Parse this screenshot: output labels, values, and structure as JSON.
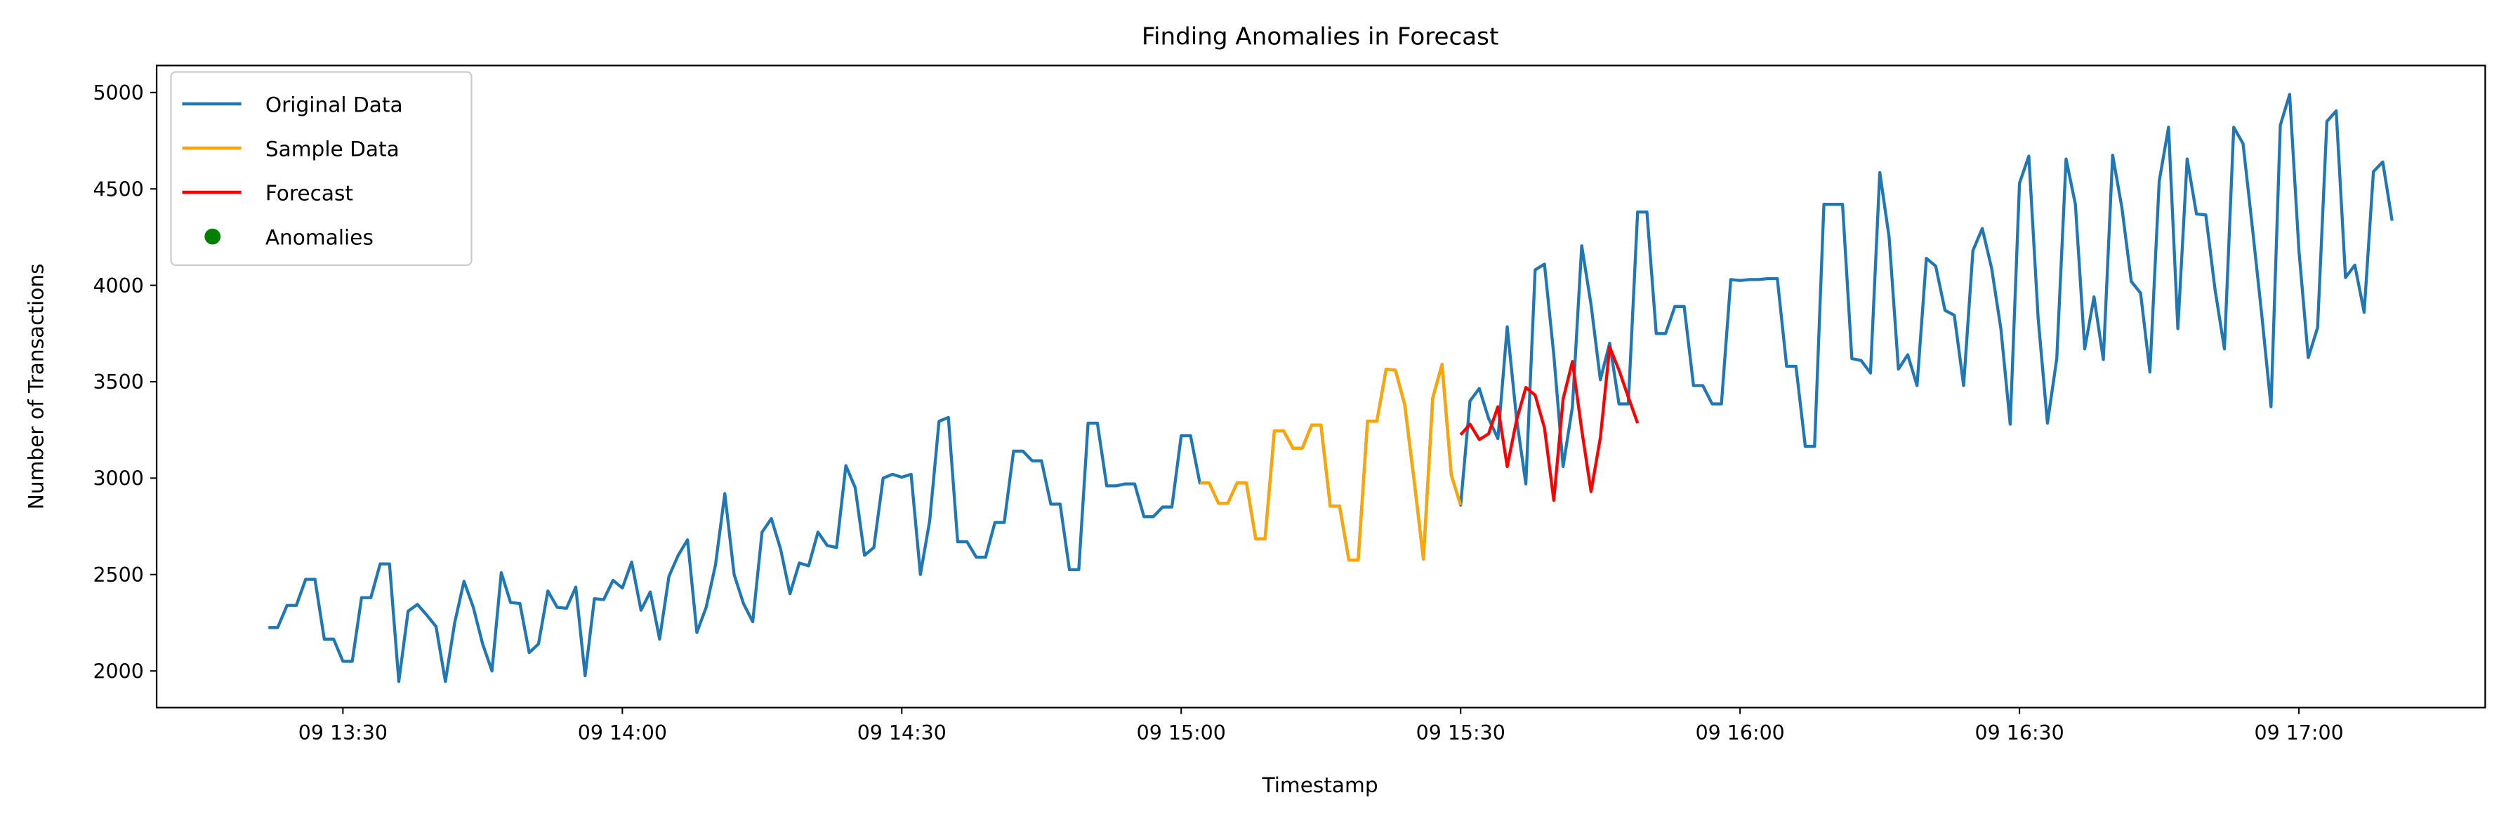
{
  "chart_data": {
    "type": "line",
    "title": "Finding Anomalies in Forecast",
    "x_label": "Timestamp",
    "y_label": "Number of Transactions",
    "xlim": [
      "09 13:10",
      "09 17:20"
    ],
    "xticks": [
      "09 13:30",
      "09 14:00",
      "09 14:30",
      "09 15:00",
      "09 15:30",
      "09 16:00",
      "09 16:30",
      "09 17:00"
    ],
    "ylim": [
      1810,
      5140
    ],
    "yticks": [
      2000,
      2500,
      3000,
      3500,
      4000,
      4500,
      5000
    ],
    "grid": false,
    "legend": "upper left",
    "series": [
      {
        "name": "Original Data",
        "color": "#1f77b4",
        "kind": "line",
        "x": [
          "09 13:22",
          "09 13:23",
          "09 13:24",
          "09 13:25",
          "09 13:26",
          "09 13:27",
          "09 13:28",
          "09 13:29",
          "09 13:30",
          "09 13:31",
          "09 13:32",
          "09 13:33",
          "09 13:34",
          "09 13:35",
          "09 13:36",
          "09 13:37",
          "09 13:38",
          "09 13:39",
          "09 13:40",
          "09 13:41",
          "09 13:42",
          "09 13:43",
          "09 13:44",
          "09 13:45",
          "09 13:46",
          "09 13:47",
          "09 13:48",
          "09 13:49",
          "09 13:50",
          "09 13:51",
          "09 13:52",
          "09 13:53",
          "09 13:54",
          "09 13:55",
          "09 13:56",
          "09 13:57",
          "09 13:58",
          "09 13:59",
          "09 14:00",
          "09 14:01",
          "09 14:02",
          "09 14:03",
          "09 14:04",
          "09 14:05",
          "09 14:06",
          "09 14:07",
          "09 14:08",
          "09 14:09",
          "09 14:10",
          "09 14:11",
          "09 14:12",
          "09 14:13",
          "09 14:14",
          "09 14:15",
          "09 14:16",
          "09 14:17",
          "09 14:18",
          "09 14:19",
          "09 14:20",
          "09 14:21",
          "09 14:22",
          "09 14:23",
          "09 14:24",
          "09 14:25",
          "09 14:26",
          "09 14:27",
          "09 14:28",
          "09 14:29",
          "09 14:30",
          "09 14:31",
          "09 14:32",
          "09 14:33",
          "09 14:34",
          "09 14:35",
          "09 14:36",
          "09 14:37",
          "09 14:38",
          "09 14:39",
          "09 14:40",
          "09 14:41",
          "09 14:42",
          "09 14:43",
          "09 14:44",
          "09 14:45",
          "09 14:46",
          "09 14:47",
          "09 14:48",
          "09 14:49",
          "09 14:50",
          "09 14:51",
          "09 14:52",
          "09 14:53",
          "09 14:54",
          "09 14:55",
          "09 14:56",
          "09 14:57",
          "09 14:58",
          "09 14:59",
          "09 15:00",
          "09 15:01",
          "09 15:02",
          "09 15:03",
          "09 15:04",
          "09 15:05",
          "09 15:06",
          "09 15:07",
          "09 15:08",
          "09 15:09",
          "09 15:10",
          "09 15:11",
          "09 15:12",
          "09 15:13",
          "09 15:14",
          "09 15:15",
          "09 15:16",
          "09 15:17",
          "09 15:18",
          "09 15:19",
          "09 15:20",
          "09 15:21",
          "09 15:22",
          "09 15:23",
          "09 15:24",
          "09 15:25",
          "09 15:26",
          "09 15:27",
          "09 15:28",
          "09 15:29",
          "09 15:30",
          "09 15:31",
          "09 15:32",
          "09 15:33",
          "09 15:34",
          "09 15:35",
          "09 15:36",
          "09 15:37",
          "09 15:38",
          "09 15:39",
          "09 15:40",
          "09 15:41",
          "09 15:42",
          "09 15:43",
          "09 15:44",
          "09 15:45",
          "09 15:46",
          "09 15:47",
          "09 15:48",
          "09 15:49",
          "09 15:50",
          "09 15:51",
          "09 15:52",
          "09 15:53",
          "09 15:54",
          "09 15:55",
          "09 15:56",
          "09 15:57",
          "09 15:58",
          "09 15:59",
          "09 16:00",
          "09 16:01",
          "09 16:02",
          "09 16:03",
          "09 16:04",
          "09 16:05",
          "09 16:06",
          "09 16:07",
          "09 16:08",
          "09 16:09",
          "09 16:10",
          "09 16:11",
          "09 16:12",
          "09 16:13",
          "09 16:14",
          "09 16:15",
          "09 16:16",
          "09 16:17",
          "09 16:18",
          "09 16:19",
          "09 16:20",
          "09 16:21",
          "09 16:22",
          "09 16:23",
          "09 16:24",
          "09 16:25",
          "09 16:26",
          "09 16:27",
          "09 16:28",
          "09 16:29",
          "09 16:30",
          "09 16:31",
          "09 16:32",
          "09 16:33",
          "09 16:34",
          "09 16:35",
          "09 16:36",
          "09 16:37",
          "09 16:38",
          "09 16:39",
          "09 16:40",
          "09 16:41",
          "09 16:42",
          "09 16:43",
          "09 16:44",
          "09 16:45",
          "09 16:46",
          "09 16:47",
          "09 16:48",
          "09 16:49",
          "09 16:50",
          "09 16:51",
          "09 16:52",
          "09 16:53",
          "09 16:54",
          "09 16:55",
          "09 16:56",
          "09 16:57",
          "09 16:58",
          "09 16:59",
          "09 17:00",
          "09 17:01",
          "09 17:02",
          "09 17:03",
          "09 17:04",
          "09 17:05",
          "09 17:06",
          "09 17:07",
          "09 17:08",
          "09 17:09",
          "09 17:10"
        ],
        "values": [
          2225,
          2225,
          2340,
          2340,
          2475,
          2475,
          2165,
          2165,
          2050,
          2050,
          2380,
          2380,
          2555,
          2555,
          1945,
          2310,
          2345,
          2290,
          2230,
          1945,
          2250,
          2465,
          2330,
          2140,
          2000,
          2510,
          2355,
          2350,
          2095,
          2140,
          2415,
          2330,
          2325,
          2435,
          1975,
          2375,
          2370,
          2470,
          2430,
          2565,
          2315,
          2410,
          2165,
          2490,
          2600,
          2680,
          2200,
          2330,
          2550,
          2920,
          2500,
          2350,
          2255,
          2720,
          2790,
          2630,
          2400,
          2560,
          2545,
          2720,
          2650,
          2640,
          3065,
          2950,
          2600,
          2640,
          3000,
          3020,
          3005,
          3020,
          2500,
          2780,
          3295,
          3315,
          2670,
          2670,
          2590,
          2590,
          2770,
          2770,
          3140,
          3140,
          3090,
          3090,
          2865,
          2865,
          2525,
          2525,
          3285,
          3285,
          2960,
          2960,
          2970,
          2970,
          2800,
          2800,
          2850,
          2850,
          3220,
          3220,
          2975,
          2975,
          2870,
          2870,
          2975,
          2975,
          2685,
          2685,
          3245,
          3245,
          3155,
          3155,
          3275,
          3275,
          2855,
          2855,
          2575,
          2575,
          3295,
          3295,
          3565,
          3560,
          3380,
          2990,
          2580,
          3415,
          3590,
          3015,
          2860,
          3400,
          3465,
          3310,
          3205,
          3785,
          3310,
          2970,
          4080,
          4110,
          3640,
          3060,
          3370,
          4205,
          3900,
          3510,
          3700,
          3385,
          3385,
          4380,
          4380,
          3750,
          3750,
          3890,
          3890,
          3480,
          3480,
          3385,
          3385,
          4030,
          4025,
          4030,
          4030,
          4035,
          4035,
          3580,
          3580,
          3165,
          3165,
          4420,
          4420,
          4420,
          3620,
          3610,
          3545,
          4585,
          4250,
          3565,
          3640,
          3480,
          4140,
          4100,
          3870,
          3845,
          3480,
          4180,
          4295,
          4090,
          3775,
          3280,
          4530,
          4670,
          3830,
          3285,
          3620,
          4655,
          4420,
          3670,
          3940,
          3615,
          4675,
          4400,
          4020,
          3960,
          3550,
          4540,
          4820,
          3775,
          4655,
          4370,
          4365,
          3975,
          3670,
          4820,
          4735,
          4300,
          3850,
          3370,
          4830,
          4990,
          4180,
          3625,
          3780,
          4850,
          4905,
          4040,
          4105,
          3860,
          4590,
          4640,
          4335
        ]
      },
      {
        "name": "Sample Data",
        "color": "#ffa500",
        "kind": "line",
        "x": [
          "09 15:02",
          "09 15:03",
          "09 15:04",
          "09 15:05",
          "09 15:06",
          "09 15:07",
          "09 15:08",
          "09 15:09",
          "09 15:10",
          "09 15:11",
          "09 15:12",
          "09 15:13",
          "09 15:14",
          "09 15:15",
          "09 15:16",
          "09 15:17",
          "09 15:18",
          "09 15:19",
          "09 15:20",
          "09 15:21",
          "09 15:22",
          "09 15:23",
          "09 15:24",
          "09 15:25",
          "09 15:26",
          "09 15:27",
          "09 15:28",
          "09 15:29",
          "09 15:30"
        ],
        "values": [
          2975,
          2975,
          2870,
          2870,
          2975,
          2975,
          2685,
          2685,
          3245,
          3245,
          3155,
          3155,
          3275,
          3275,
          2855,
          2855,
          2575,
          2575,
          3295,
          3295,
          3565,
          3560,
          3380,
          2990,
          2580,
          3415,
          3590,
          3015,
          2860
        ]
      },
      {
        "name": "Forecast",
        "color": "#ff0000",
        "kind": "line",
        "x": [
          "09 15:30",
          "09 15:31",
          "09 15:32",
          "09 15:33",
          "09 15:34",
          "09 15:35",
          "09 15:36",
          "09 15:37",
          "09 15:38",
          "09 15:39",
          "09 15:40",
          "09 15:41",
          "09 15:42",
          "09 15:43",
          "09 15:44",
          "09 15:45",
          "09 15:46",
          "09 15:47",
          "09 15:48",
          "09 15:49"
        ],
        "values": [
          3225,
          3280,
          3200,
          3230,
          3370,
          3060,
          3300,
          3470,
          3430,
          3260,
          2885,
          3410,
          3605,
          3250,
          2930,
          3210,
          3680,
          3560,
          3420,
          3285
        ]
      },
      {
        "name": "Anomalies",
        "color": "#008000",
        "kind": "scatter",
        "x": [],
        "values": []
      }
    ]
  }
}
